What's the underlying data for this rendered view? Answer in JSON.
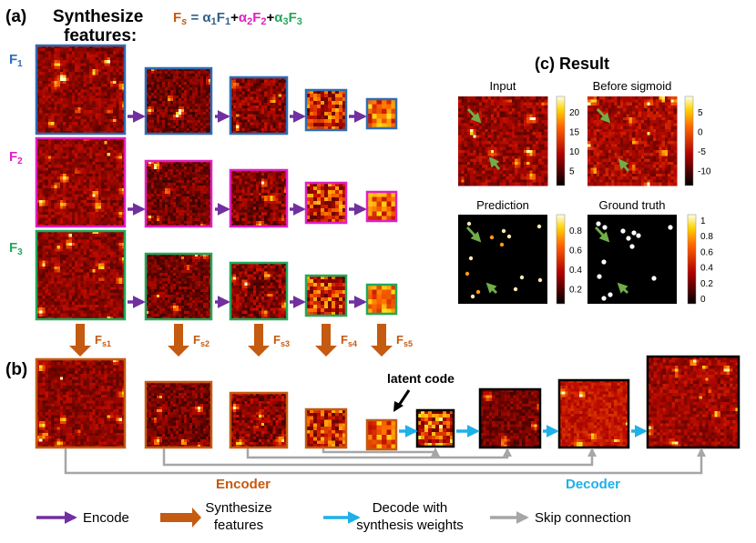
{
  "title_a": {
    "tag": "(a)",
    "line1": "Synthesize",
    "line2": "features:"
  },
  "equation": {
    "lhs": "F",
    "lhs_sub": "s",
    "eq": " = ",
    "terms": [
      {
        "alpha": "α",
        "alpha_sub": "1",
        "f": "F",
        "f_sub": "1",
        "color": "#2e5f8a"
      },
      {
        "alpha": "α",
        "alpha_sub": "2",
        "f": "F",
        "f_sub": "2",
        "color": "#e020c0"
      },
      {
        "alpha": "α",
        "alpha_sub": "3",
        "f": "F",
        "f_sub": "3",
        "color": "#22a85a"
      }
    ],
    "plus": "+"
  },
  "feature_rows": [
    {
      "label": "F",
      "sub": "1",
      "color": "#2e6db4"
    },
    {
      "label": "F",
      "sub": "2",
      "color": "#e020c0"
    },
    {
      "label": "F",
      "sub": "3",
      "color": "#22a85a"
    }
  ],
  "synth_arrows": [
    {
      "label": "F",
      "sub": "s1"
    },
    {
      "label": "F",
      "sub": "s2"
    },
    {
      "label": "F",
      "sub": "s3"
    },
    {
      "label": "F",
      "sub": "s4"
    },
    {
      "label": "F",
      "sub": "s5"
    }
  ],
  "title_b": "(b)",
  "latent_code": "latent code",
  "encoder_label": "Encoder",
  "decoder_label": "Decoder",
  "result": {
    "title": "(c) Result",
    "panels": [
      {
        "title": "Input",
        "colorbar_ticks": [
          "20",
          "15",
          "10",
          "5"
        ]
      },
      {
        "title": "Before sigmoid",
        "colorbar_ticks": [
          "5",
          "0",
          "-5",
          "-10"
        ]
      },
      {
        "title": "Prediction",
        "colorbar_ticks": [
          "0.8",
          "0.6",
          "0.4",
          "0.2"
        ]
      },
      {
        "title": "Ground truth",
        "colorbar_ticks": [
          "1",
          "0.8",
          "0.6",
          "0.4",
          "0.2",
          "0"
        ]
      }
    ]
  },
  "legend": [
    {
      "label_lines": [
        "Encode"
      ],
      "color": "#7030a0"
    },
    {
      "label_lines": [
        "Synthesize",
        "features"
      ],
      "color": "#c55a11"
    },
    {
      "label_lines": [
        "Decode with",
        "synthesis weights"
      ],
      "color": "#1fb0e8"
    },
    {
      "label_lines": [
        "Skip connection"
      ],
      "color": "#a6a6a6"
    }
  ],
  "colors": {
    "encode": "#7030a0",
    "synthesize": "#c55a11",
    "decode": "#1fb0e8",
    "skip": "#a6a6a6",
    "encoder_text": "#c55a11",
    "decoder_text": "#1fb0e8",
    "result_arrow": "#70ad47",
    "dark_frame": "#000000"
  }
}
